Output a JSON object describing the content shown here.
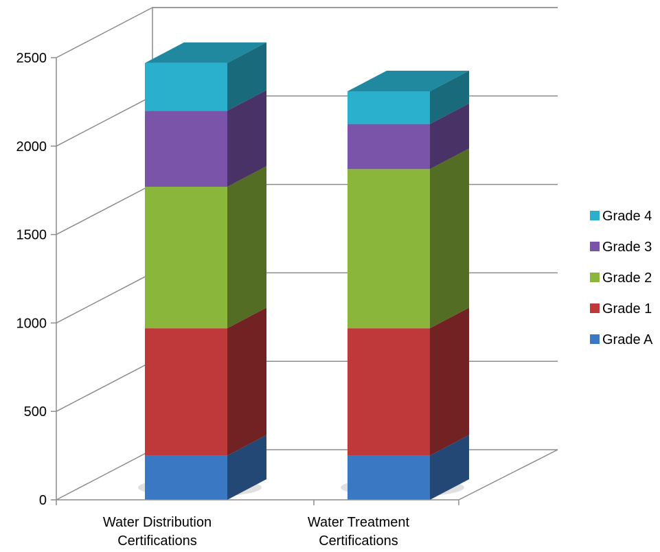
{
  "chart_data": {
    "type": "bar",
    "stacked": true,
    "three_d": true,
    "categories": [
      "Water Distribution Certifications",
      "Water Treatment Certifications"
    ],
    "category_lines": [
      [
        "Water Distribution",
        "Certifications"
      ],
      [
        "Water Treatment",
        "Certifications"
      ]
    ],
    "series": [
      {
        "name": "Grade A",
        "values": [
          250,
          250
        ],
        "color": "#3a78c3"
      },
      {
        "name": "Grade 1",
        "values": [
          720,
          720
        ],
        "color": "#c0393a"
      },
      {
        "name": "Grade 2",
        "values": [
          800,
          900
        ],
        "color": "#8ab63c"
      },
      {
        "name": "Grade 3",
        "values": [
          430,
          255
        ],
        "color": "#7a54a8"
      },
      {
        "name": "Grade 4",
        "values": [
          270,
          185
        ],
        "color": "#2ab0cc"
      }
    ],
    "yticks": [
      0,
      500,
      1000,
      1500,
      2000,
      2500
    ],
    "ylim": [
      0,
      2500
    ],
    "grid": true,
    "legend_position": "right",
    "legend_order": [
      "Grade 4",
      "Grade 3",
      "Grade 2",
      "Grade 1",
      "Grade A"
    ],
    "title": "",
    "xlabel": "",
    "ylabel": ""
  }
}
